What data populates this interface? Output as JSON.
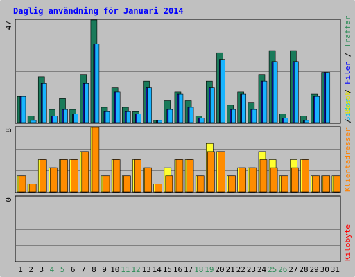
{
  "chart_data": {
    "type": "bar",
    "title": "Daglig användning för Januari 2014",
    "categories": [
      "1",
      "2",
      "3",
      "4",
      "5",
      "6",
      "7",
      "8",
      "9",
      "10",
      "11",
      "12",
      "13",
      "14",
      "15",
      "16",
      "17",
      "18",
      "19",
      "20",
      "21",
      "22",
      "23",
      "24",
      "25",
      "26",
      "27",
      "28",
      "29",
      "30",
      "31"
    ],
    "weekend_days": [
      "4",
      "5",
      "11",
      "12",
      "18",
      "19",
      "25",
      "26"
    ],
    "colors": {
      "background": "#c0c0c0",
      "title": "#0000ff",
      "axis_default": "#000000",
      "weekend": "#2e8b57"
    },
    "panels": [
      {
        "id": "hits-files",
        "y_max_label": "47",
        "ylim": [
          0,
          47
        ],
        "series": [
          {
            "name": "Träffar",
            "color": "#1a7a5a",
            "label_color": "#2e8b57",
            "values": [
              12,
              3,
              21,
              6,
              11,
              6,
              22,
              47,
              7,
              16,
              7,
              5,
              19,
              1,
              10,
              14,
              10,
              3,
              19,
              32,
              8,
              14,
              9,
              22,
              33,
              4,
              33,
              3,
              13,
              23,
              0
            ]
          },
          {
            "name": "Filer",
            "color": "#18b4ff",
            "label_color": "#0000ff",
            "values": [
              12,
              1,
              18,
              3,
              6,
              4,
              18,
              36,
              5,
              14,
              5,
              4,
              16,
              1,
              6,
              13,
              7,
              2,
              16,
              29,
              6,
              13,
              6,
              19,
              28,
              2,
              28,
              1,
              12,
              23,
              0
            ]
          },
          {
            "name": "Sidor",
            "color": "#1010a0",
            "label_color": "#00bfff",
            "values": [
              12,
              0,
              18,
              3,
              6,
              4,
              18,
              36,
              5,
              14,
              5,
              4,
              16,
              1,
              6,
              13,
              7,
              2,
              16,
              29,
              6,
              13,
              6,
              19,
              28,
              2,
              28,
              1,
              12,
              23,
              0
            ]
          }
        ]
      },
      {
        "id": "visits-sites",
        "y_max_label": "8",
        "ylim": [
          0,
          8
        ],
        "series": [
          {
            "name": "Besök",
            "color": "#ffff30",
            "label_color": "#e0e000",
            "values": [
              2,
              1,
              4,
              3,
              4,
              4,
              5,
              8,
              2,
              4,
              2,
              4,
              3,
              1,
              3,
              4,
              4,
              2,
              6,
              5,
              2,
              3,
              3,
              5,
              4,
              2,
              4,
              4,
              2,
              2,
              2
            ]
          },
          {
            "name": "Klientadresser",
            "color": "#ff8c00",
            "label_color": "#ff8000",
            "values": [
              2,
              1,
              4,
              3,
              4,
              4,
              5,
              8,
              2,
              4,
              2,
              4,
              3,
              1,
              2,
              4,
              4,
              2,
              5,
              5,
              2,
              3,
              3,
              4,
              3,
              2,
              3,
              4,
              2,
              2,
              2
            ]
          }
        ]
      },
      {
        "id": "kbytes",
        "y_max_label": "0",
        "ylim": [
          0,
          1
        ],
        "series": [
          {
            "name": "Kilobyte",
            "color": "#ff0000",
            "label_color": "#ff0000",
            "values": [
              0,
              0,
              0,
              0,
              0,
              0,
              0,
              0,
              0,
              0,
              0,
              0,
              0,
              0,
              0,
              0,
              0,
              0,
              0,
              0,
              0,
              0,
              0,
              0,
              0,
              0,
              0,
              0,
              0,
              0,
              0
            ]
          }
        ]
      }
    ],
    "legend_placement": "right (vertical text)",
    "grid": true
  }
}
